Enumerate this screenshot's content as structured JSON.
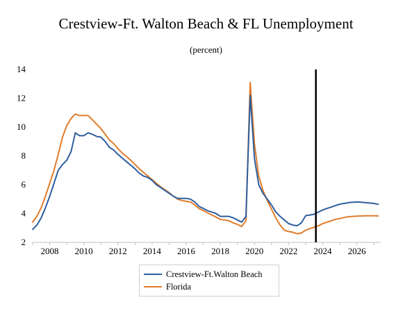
{
  "chart_data": {
    "type": "line",
    "title": "Crestview-Ft. Walton Beach & FL Unemployment",
    "subtitle": "(percent)",
    "xlabel": "",
    "ylabel": "",
    "xlim": [
      2007.0,
      2027.4
    ],
    "ylim": [
      2,
      14
    ],
    "y_ticks": [
      2,
      4,
      6,
      8,
      10,
      12,
      14
    ],
    "x_ticks": [
      2008,
      2010,
      2012,
      2014,
      2016,
      2018,
      2020,
      2022,
      2024,
      2026
    ],
    "x_tick_labels": [
      "2008",
      "2010",
      "2012",
      "2014",
      "2016",
      "2018",
      "2020",
      "2022",
      "2024",
      "2026"
    ],
    "y_tick_labels": [
      "2",
      "4",
      "6",
      "8",
      "10",
      "12",
      "14"
    ],
    "grid": false,
    "legend_position": "bottom",
    "vertical_marker": {
      "x": 2023.6,
      "color": "#000000"
    },
    "series": [
      {
        "name": "Crestview-Ft.Walton Beach",
        "color": "#2e5e9e",
        "points": [
          [
            2007.0,
            2.9
          ],
          [
            2007.25,
            3.2
          ],
          [
            2007.5,
            3.7
          ],
          [
            2007.75,
            4.4
          ],
          [
            2008.0,
            5.2
          ],
          [
            2008.25,
            6.1
          ],
          [
            2008.5,
            7.0
          ],
          [
            2008.75,
            7.4
          ],
          [
            2009.0,
            7.7
          ],
          [
            2009.25,
            8.3
          ],
          [
            2009.5,
            9.6
          ],
          [
            2009.75,
            9.4
          ],
          [
            2010.0,
            9.4
          ],
          [
            2010.25,
            9.6
          ],
          [
            2010.5,
            9.5
          ],
          [
            2010.75,
            9.35
          ],
          [
            2011.0,
            9.3
          ],
          [
            2011.25,
            9.0
          ],
          [
            2011.5,
            8.6
          ],
          [
            2011.75,
            8.4
          ],
          [
            2012.0,
            8.1
          ],
          [
            2012.25,
            7.85
          ],
          [
            2012.5,
            7.6
          ],
          [
            2012.75,
            7.35
          ],
          [
            2013.0,
            7.1
          ],
          [
            2013.25,
            6.8
          ],
          [
            2013.5,
            6.6
          ],
          [
            2013.75,
            6.5
          ],
          [
            2014.0,
            6.3
          ],
          [
            2014.25,
            6.0
          ],
          [
            2014.5,
            5.8
          ],
          [
            2014.75,
            5.6
          ],
          [
            2015.0,
            5.4
          ],
          [
            2015.25,
            5.2
          ],
          [
            2015.5,
            5.05
          ],
          [
            2015.75,
            5.05
          ],
          [
            2016.0,
            5.05
          ],
          [
            2016.25,
            5.0
          ],
          [
            2016.5,
            4.8
          ],
          [
            2016.75,
            4.5
          ],
          [
            2017.0,
            4.35
          ],
          [
            2017.25,
            4.2
          ],
          [
            2017.5,
            4.1
          ],
          [
            2017.75,
            4.0
          ],
          [
            2018.0,
            3.8
          ],
          [
            2018.25,
            3.8
          ],
          [
            2018.5,
            3.8
          ],
          [
            2018.75,
            3.7
          ],
          [
            2019.0,
            3.55
          ],
          [
            2019.25,
            3.4
          ],
          [
            2019.5,
            3.8
          ],
          [
            2019.75,
            12.2
          ],
          [
            2020.0,
            7.8
          ],
          [
            2020.25,
            6.0
          ],
          [
            2020.5,
            5.4
          ],
          [
            2020.75,
            5.0
          ],
          [
            2021.0,
            4.6
          ],
          [
            2021.25,
            4.1
          ],
          [
            2021.5,
            3.8
          ],
          [
            2021.75,
            3.55
          ],
          [
            2022.0,
            3.3
          ],
          [
            2022.25,
            3.2
          ],
          [
            2022.5,
            3.15
          ],
          [
            2022.75,
            3.35
          ],
          [
            2023.0,
            3.85
          ],
          [
            2023.25,
            3.9
          ],
          [
            2023.5,
            3.95
          ],
          [
            2023.75,
            4.1
          ],
          [
            2024.0,
            4.25
          ],
          [
            2024.25,
            4.35
          ],
          [
            2024.5,
            4.45
          ],
          [
            2024.75,
            4.55
          ],
          [
            2025.0,
            4.65
          ],
          [
            2025.25,
            4.7
          ],
          [
            2025.5,
            4.75
          ],
          [
            2025.75,
            4.78
          ],
          [
            2026.0,
            4.8
          ],
          [
            2026.25,
            4.78
          ],
          [
            2026.5,
            4.76
          ],
          [
            2026.75,
            4.73
          ],
          [
            2027.0,
            4.7
          ],
          [
            2027.25,
            4.64
          ]
        ]
      },
      {
        "name": "Florida",
        "color": "#e07b2a",
        "points": [
          [
            2007.0,
            3.4
          ],
          [
            2007.25,
            3.8
          ],
          [
            2007.5,
            4.4
          ],
          [
            2007.75,
            5.2
          ],
          [
            2008.0,
            6.1
          ],
          [
            2008.25,
            7.0
          ],
          [
            2008.5,
            8.1
          ],
          [
            2008.75,
            9.3
          ],
          [
            2009.0,
            10.1
          ],
          [
            2009.25,
            10.6
          ],
          [
            2009.5,
            10.9
          ],
          [
            2009.75,
            10.8
          ],
          [
            2010.0,
            10.8
          ],
          [
            2010.25,
            10.8
          ],
          [
            2010.5,
            10.5
          ],
          [
            2010.75,
            10.2
          ],
          [
            2011.0,
            9.9
          ],
          [
            2011.25,
            9.5
          ],
          [
            2011.5,
            9.1
          ],
          [
            2011.75,
            8.85
          ],
          [
            2012.0,
            8.5
          ],
          [
            2012.25,
            8.2
          ],
          [
            2012.5,
            7.95
          ],
          [
            2012.75,
            7.7
          ],
          [
            2013.0,
            7.4
          ],
          [
            2013.25,
            7.1
          ],
          [
            2013.5,
            6.85
          ],
          [
            2013.75,
            6.6
          ],
          [
            2014.0,
            6.35
          ],
          [
            2014.25,
            6.1
          ],
          [
            2014.5,
            5.85
          ],
          [
            2014.75,
            5.65
          ],
          [
            2015.0,
            5.45
          ],
          [
            2015.25,
            5.2
          ],
          [
            2015.5,
            5.0
          ],
          [
            2015.75,
            4.9
          ],
          [
            2016.0,
            4.85
          ],
          [
            2016.25,
            4.8
          ],
          [
            2016.5,
            4.6
          ],
          [
            2016.75,
            4.35
          ],
          [
            2017.0,
            4.2
          ],
          [
            2017.25,
            4.05
          ],
          [
            2017.5,
            3.9
          ],
          [
            2017.75,
            3.75
          ],
          [
            2018.0,
            3.6
          ],
          [
            2018.25,
            3.55
          ],
          [
            2018.5,
            3.5
          ],
          [
            2018.75,
            3.35
          ],
          [
            2019.0,
            3.25
          ],
          [
            2019.25,
            3.1
          ],
          [
            2019.5,
            3.5
          ],
          [
            2019.75,
            13.1
          ],
          [
            2020.0,
            8.8
          ],
          [
            2020.25,
            6.6
          ],
          [
            2020.5,
            5.6
          ],
          [
            2020.75,
            4.9
          ],
          [
            2021.0,
            4.3
          ],
          [
            2021.25,
            3.7
          ],
          [
            2021.5,
            3.2
          ],
          [
            2021.75,
            2.85
          ],
          [
            2022.0,
            2.75
          ],
          [
            2022.25,
            2.7
          ],
          [
            2022.5,
            2.6
          ],
          [
            2022.75,
            2.65
          ],
          [
            2023.0,
            2.85
          ],
          [
            2023.25,
            2.95
          ],
          [
            2023.5,
            3.05
          ],
          [
            2023.75,
            3.15
          ],
          [
            2024.0,
            3.3
          ],
          [
            2024.25,
            3.4
          ],
          [
            2024.5,
            3.5
          ],
          [
            2024.75,
            3.6
          ],
          [
            2025.0,
            3.65
          ],
          [
            2025.25,
            3.72
          ],
          [
            2025.5,
            3.78
          ],
          [
            2025.75,
            3.8
          ],
          [
            2026.0,
            3.82
          ],
          [
            2026.25,
            3.83
          ],
          [
            2026.5,
            3.84
          ],
          [
            2026.75,
            3.84
          ],
          [
            2027.0,
            3.84
          ],
          [
            2027.25,
            3.83
          ]
        ]
      }
    ]
  }
}
